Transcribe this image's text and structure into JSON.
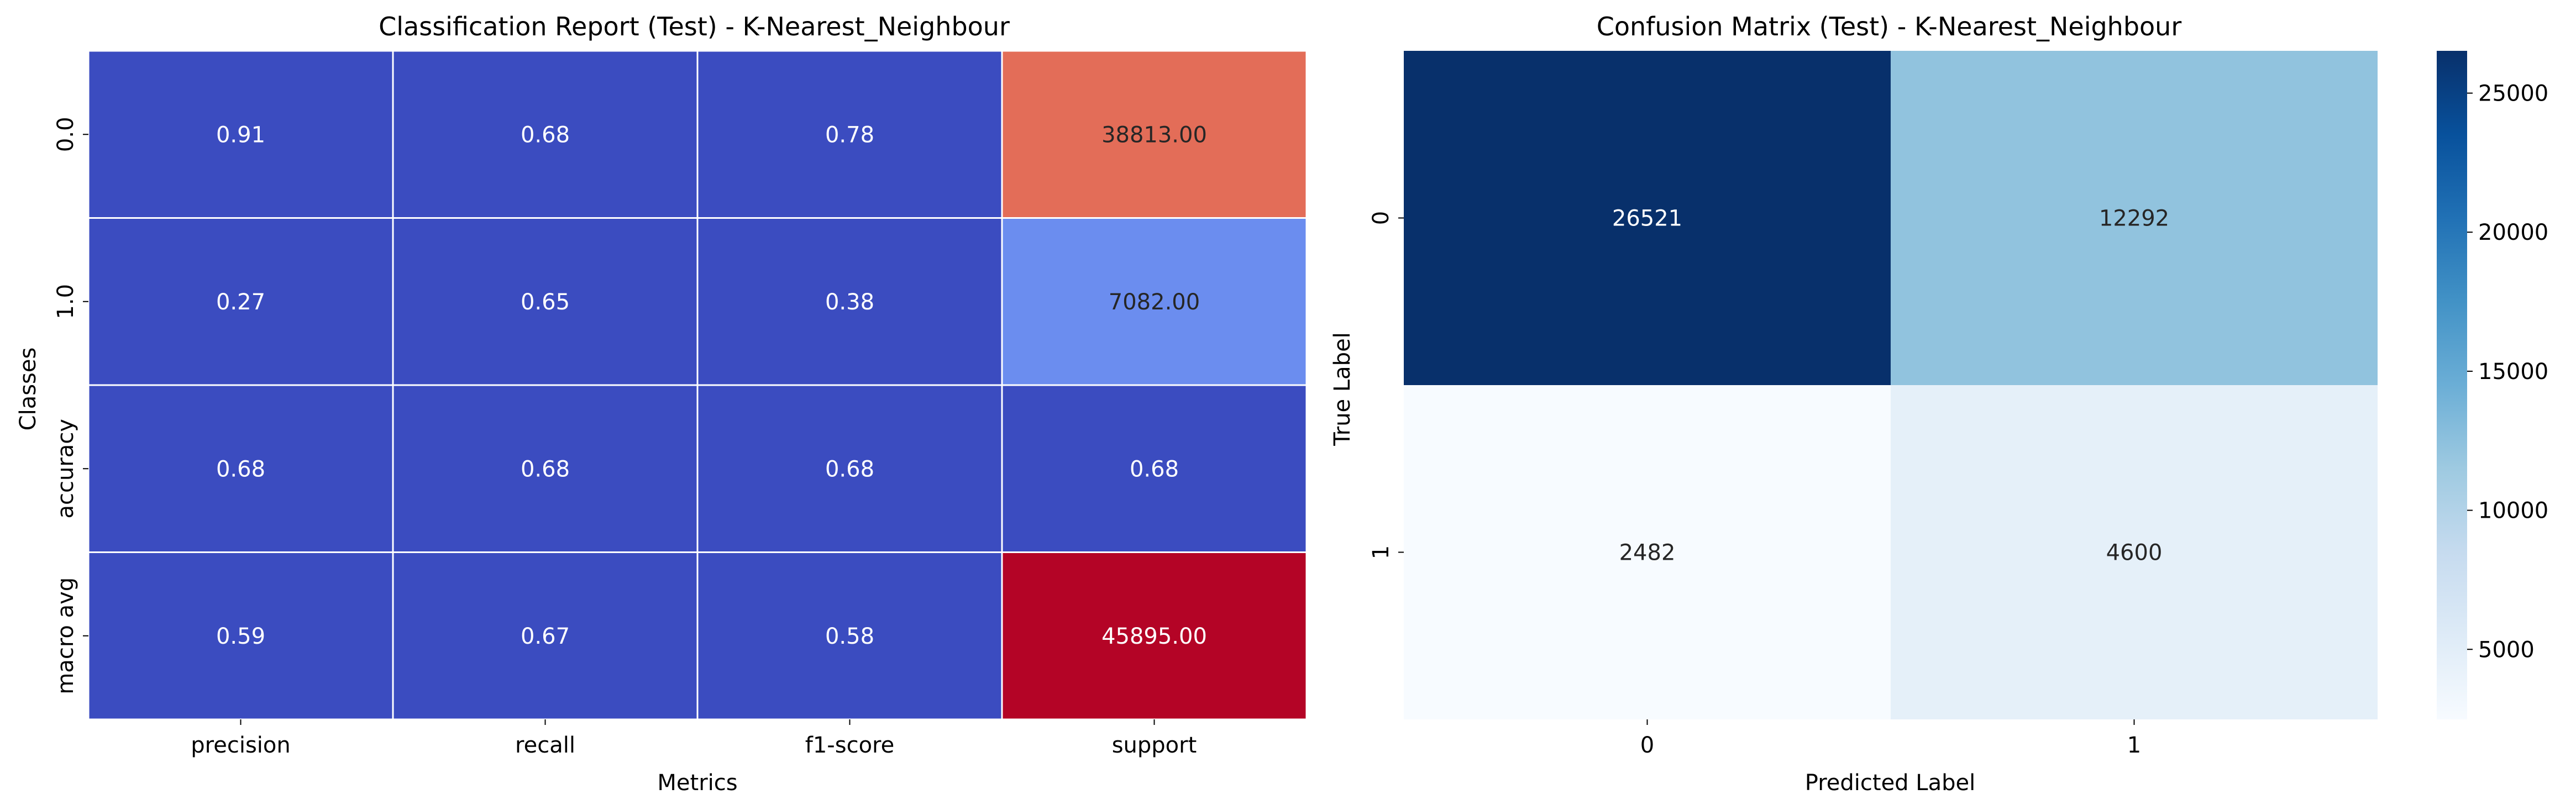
{
  "chart_data": [
    {
      "type": "heatmap",
      "title": "Classification Report (Test) - K-Nearest_Neighbour",
      "xlabel": "Metrics",
      "ylabel": "Classes",
      "x_categories": [
        "precision",
        "recall",
        "f1-score",
        "support"
      ],
      "y_categories": [
        "0.0",
        "1.0",
        "accuracy",
        "macro avg"
      ],
      "values": [
        [
          0.91,
          0.68,
          0.78,
          38813.0
        ],
        [
          0.27,
          0.65,
          0.38,
          7082.0
        ],
        [
          0.68,
          0.68,
          0.68,
          0.68
        ],
        [
          0.59,
          0.67,
          0.58,
          45895.0
        ]
      ],
      "cell_labels": [
        [
          "0.91",
          "0.68",
          "0.78",
          "38813.00"
        ],
        [
          "0.27",
          "0.65",
          "0.38",
          "7082.00"
        ],
        [
          "0.68",
          "0.68",
          "0.68",
          "0.68"
        ],
        [
          "0.59",
          "0.67",
          "0.58",
          "45895.00"
        ]
      ],
      "colormap": "coolwarm",
      "vmin": 0,
      "vmax": 45895,
      "colorbar": false,
      "grid_lines": true
    },
    {
      "type": "heatmap",
      "title": "Confusion Matrix (Test) - K-Nearest_Neighbour",
      "xlabel": "Predicted Label",
      "ylabel": "True Label",
      "x_categories": [
        "0",
        "1"
      ],
      "y_categories": [
        "0",
        "1"
      ],
      "values": [
        [
          26521,
          12292
        ],
        [
          2482,
          4600
        ]
      ],
      "cell_labels": [
        [
          "26521",
          "12292"
        ],
        [
          "2482",
          "4600"
        ]
      ],
      "colormap": "Blues",
      "vmin": 2482,
      "vmax": 26521,
      "colorbar": true,
      "colorbar_ticks": [
        5000,
        10000,
        15000,
        20000,
        25000
      ],
      "colorbar_tick_labels": [
        "5000",
        "10000",
        "15000",
        "20000",
        "25000"
      ],
      "grid_lines": false
    }
  ]
}
